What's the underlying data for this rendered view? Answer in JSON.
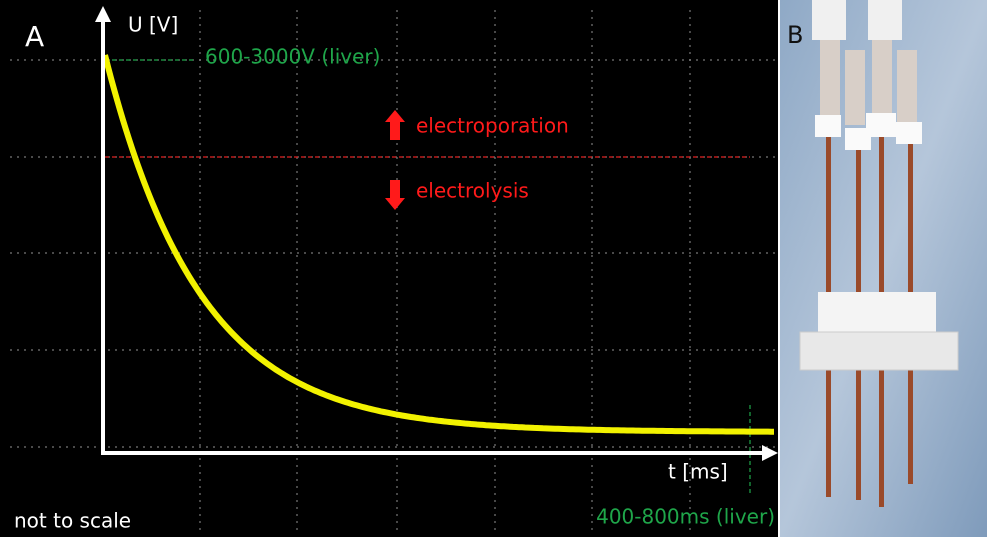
{
  "panel_a": {
    "label": "A",
    "y_axis_label": "U [V]",
    "x_axis_label": "t [ms]",
    "voltage_note": "600-3000V (liver)",
    "upper_region": "electroporation",
    "lower_region": "electrolysis",
    "time_note": "400-800ms (liver)",
    "footnote": "not to scale"
  },
  "panel_b": {
    "label": "B"
  }
}
